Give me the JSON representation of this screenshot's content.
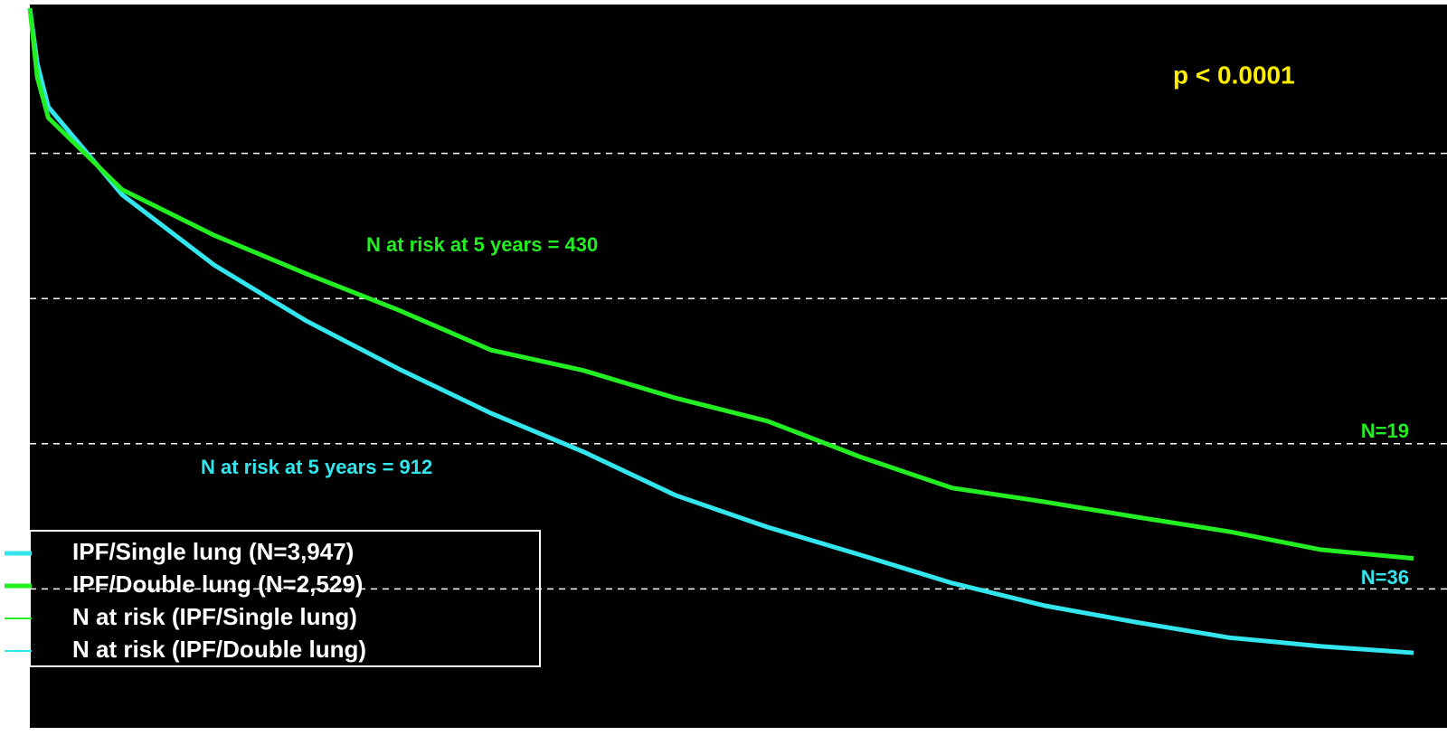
{
  "chart_data": {
    "type": "line",
    "x": [
      0,
      0.08,
      0.2,
      1,
      2,
      3,
      4,
      5,
      6,
      7,
      8,
      9,
      10,
      11,
      12,
      13,
      14,
      15
    ],
    "xlim": [
      0,
      15
    ],
    "ylim": [
      0,
      100
    ],
    "yticks": [
      20,
      40,
      60,
      80
    ],
    "grid": true,
    "series": [
      {
        "name": "IPF/Single lung (N=3,947)",
        "color": "#33e6ee",
        "values": [
          100,
          92.4,
          86.4,
          74.3,
          64.6,
          56.9,
          50.3,
          44.2,
          38.9,
          32.9,
          28.5,
          24.7,
          20.8,
          17.7,
          15.4,
          13.3,
          12.1,
          11.2
        ]
      },
      {
        "name": "IPF/Double lung (N=2,529)",
        "color": "#22ee22",
        "values": [
          100,
          90.5,
          84.9,
          75.0,
          68.7,
          63.4,
          58.4,
          52.9,
          50.1,
          46.3,
          43.1,
          38.2,
          33.9,
          32.0,
          29.9,
          27.9,
          25.4,
          24.2
        ]
      }
    ],
    "legend_extra": [
      {
        "name": "N at risk (IPF/Single lung)",
        "color": "#22ee22"
      },
      {
        "name": "N at risk (IPF/Double lung)",
        "color": "#33e6ee"
      }
    ],
    "annotations": [
      {
        "text": "p < 0.0001",
        "color": "#ffee00"
      },
      {
        "text": "N at risk at 5 years = 430",
        "color": "#22ee22"
      },
      {
        "text": "N at risk at 5 years = 912",
        "color": "#33e6ee"
      },
      {
        "text": "N=19",
        "color": "#22ee22"
      },
      {
        "text": "N=36",
        "color": "#33e6ee"
      }
    ]
  }
}
